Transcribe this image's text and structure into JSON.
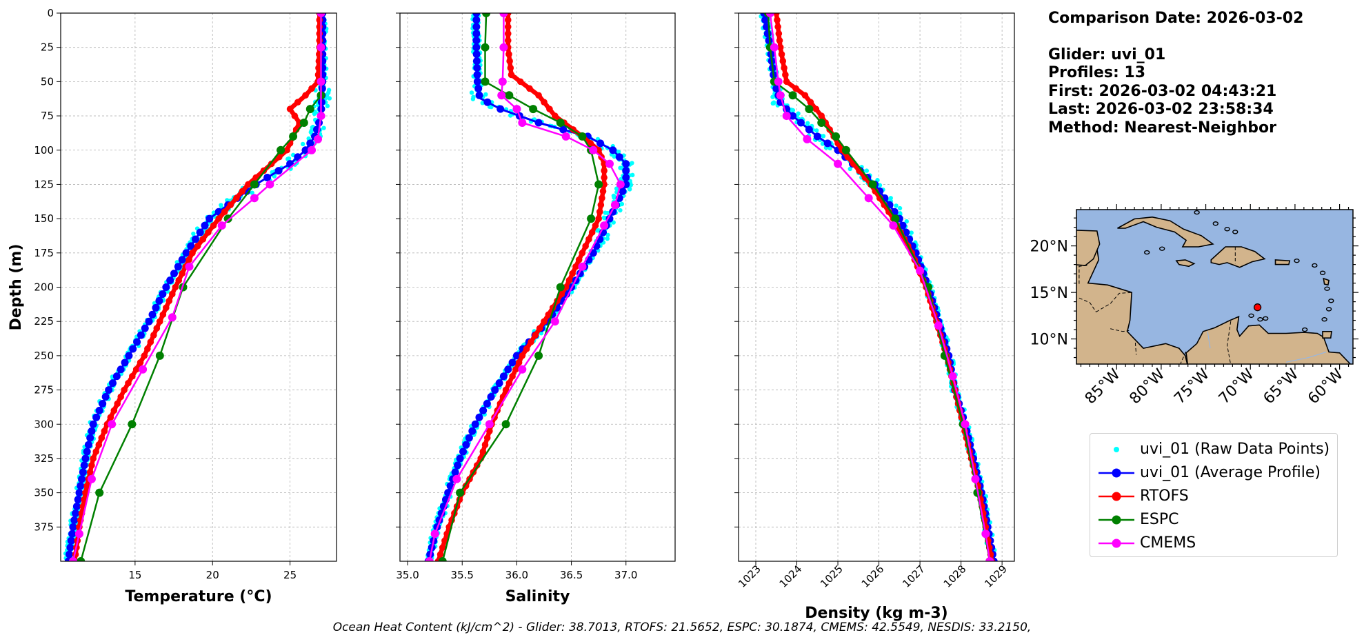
{
  "info": {
    "comparison_date": "Comparison Date: 2026-03-02",
    "glider": "Glider: uvi_01",
    "profiles": "Profiles: 13",
    "first": "First: 2026-03-02 04:43:21",
    "last": "Last: 2026-03-02 23:58:34",
    "method": "Method: Nearest-Neighbor"
  },
  "footer": "Ocean Heat Content (kJ/cm^2) - Glider: 38.7013,  RTOFS: 21.5652,  ESPC: 30.1874,  CMEMS: 42.5549,  NESDIS: 33.2150,",
  "colors": {
    "raw": "#00ffff",
    "glider": "#0000ff",
    "rtofs": "#ff0000",
    "espc": "#008000",
    "cmems": "#ff00ff",
    "ocean": "#97b6e1",
    "land": "#d2b48c"
  },
  "legend": [
    {
      "label": "uvi_01 (Raw Data Points)",
      "key": "raw",
      "style": "dots"
    },
    {
      "label": "uvi_01 (Average Profile)",
      "key": "glider",
      "style": "line-marker"
    },
    {
      "label": "RTOFS",
      "key": "rtofs",
      "style": "line-marker"
    },
    {
      "label": "ESPC",
      "key": "espc",
      "style": "line-marker"
    },
    {
      "label": "CMEMS",
      "key": "cmems",
      "style": "line-marker"
    }
  ],
  "map": {
    "lon_ticks": [
      -85,
      -80,
      -75,
      -70,
      -65,
      -60
    ],
    "lon_labels": [
      "85°W",
      "80°W",
      "75°W",
      "70°W",
      "65°W",
      "60°W"
    ],
    "lat_ticks": [
      20,
      15,
      10
    ],
    "lat_labels": [
      "20°N",
      "15°N",
      "10°N"
    ],
    "lon_range": [
      -89.5,
      -58.5
    ],
    "lat_range": [
      7.3,
      23.9
    ],
    "glider_position": {
      "lon": -69.2,
      "lat": 13.4
    }
  },
  "chart_data": [
    {
      "type": "line",
      "xlabel": "Temperature (°C)",
      "ylabel": "Depth (m)",
      "xlim": [
        10.2,
        28.0
      ],
      "ylim": [
        400,
        0
      ],
      "x_ticks": [
        15,
        20,
        25
      ],
      "y_ticks": [
        0,
        25,
        50,
        75,
        100,
        125,
        150,
        175,
        200,
        225,
        250,
        275,
        300,
        325,
        350,
        375
      ],
      "grid": true,
      "series": [
        {
          "name": "uvi_01 (Average Profile)",
          "key": "glider",
          "depth": [
            0,
            25,
            50,
            75,
            90,
            100,
            110,
            125,
            150,
            175,
            200,
            225,
            250,
            275,
            300,
            325,
            350,
            375,
            400
          ],
          "values": [
            27.1,
            27.1,
            27.1,
            27.0,
            26.6,
            26.0,
            25.0,
            22.8,
            19.8,
            18.3,
            17.0,
            15.9,
            14.6,
            13.3,
            12.3,
            11.8,
            11.4,
            11.0,
            10.7
          ]
        },
        {
          "name": "RTOFS",
          "key": "rtofs",
          "depth": [
            0,
            25,
            50,
            60,
            70,
            80,
            90,
            100,
            125,
            150,
            175,
            200,
            225,
            250,
            275,
            300,
            325,
            350,
            375,
            400
          ],
          "values": [
            26.9,
            26.9,
            26.8,
            26.0,
            25.0,
            25.6,
            25.2,
            24.8,
            22.3,
            20.4,
            18.7,
            17.6,
            16.6,
            15.6,
            14.3,
            13.2,
            12.3,
            11.8,
            11.4,
            11.1
          ]
        },
        {
          "name": "ESPC",
          "key": "espc",
          "depth": [
            0,
            25,
            50,
            60,
            70,
            80,
            90,
            100,
            125,
            150,
            200,
            250,
            300,
            350,
            400
          ],
          "values": [
            27.0,
            27.0,
            27.0,
            27.0,
            26.3,
            25.9,
            25.2,
            24.4,
            22.7,
            21.0,
            18.1,
            16.6,
            14.8,
            12.7,
            11.5
          ]
        },
        {
          "name": "CMEMS",
          "key": "cmems",
          "depth": [
            0,
            25,
            50,
            75,
            92,
            100,
            125,
            135,
            155,
            185,
            222,
            260,
            300,
            340,
            380,
            400
          ],
          "values": [
            27.0,
            27.0,
            27.0,
            27.0,
            26.8,
            26.4,
            23.7,
            22.7,
            20.6,
            18.5,
            17.4,
            15.5,
            13.5,
            12.2,
            11.4,
            11.0
          ]
        }
      ]
    },
    {
      "type": "line",
      "xlabel": "Salinity",
      "ylabel": "",
      "xlim": [
        34.93,
        37.45
      ],
      "ylim": [
        400,
        0
      ],
      "x_ticks": [
        35.0,
        35.5,
        36.0,
        36.5,
        37.0
      ],
      "x_tick_labels": [
        "35.0",
        "35.5",
        "36.0",
        "36.5",
        "37.0"
      ],
      "y_ticks": [
        0,
        25,
        50,
        75,
        100,
        125,
        150,
        175,
        200,
        225,
        250,
        275,
        300,
        325,
        350,
        375
      ],
      "grid": true,
      "series": [
        {
          "name": "uvi_01 (Average Profile)",
          "key": "glider",
          "depth": [
            0,
            25,
            50,
            62,
            70,
            80,
            90,
            100,
            110,
            125,
            150,
            175,
            200,
            225,
            250,
            275,
            300,
            325,
            350,
            375,
            400
          ],
          "values": [
            35.63,
            35.63,
            35.64,
            35.66,
            35.85,
            36.2,
            36.65,
            36.88,
            37.0,
            37.0,
            36.85,
            36.7,
            36.5,
            36.28,
            36.0,
            35.8,
            35.62,
            35.48,
            35.37,
            35.27,
            35.19
          ]
        },
        {
          "name": "RTOFS",
          "key": "rtofs",
          "depth": [
            0,
            25,
            45,
            60,
            75,
            90,
            100,
            110,
            125,
            150,
            175,
            200,
            225,
            250,
            275,
            300,
            325,
            350,
            375,
            400
          ],
          "values": [
            35.92,
            35.92,
            35.95,
            36.2,
            36.35,
            36.6,
            36.75,
            36.8,
            36.8,
            36.75,
            36.6,
            36.45,
            36.25,
            36.05,
            35.9,
            35.77,
            35.67,
            35.5,
            35.38,
            35.28
          ]
        },
        {
          "name": "ESPC",
          "key": "espc",
          "depth": [
            0,
            25,
            50,
            60,
            70,
            80,
            90,
            100,
            125,
            150,
            200,
            250,
            300,
            350,
            400
          ],
          "values": [
            35.72,
            35.71,
            35.71,
            35.93,
            36.15,
            36.4,
            36.6,
            36.68,
            36.75,
            36.68,
            36.4,
            36.2,
            35.9,
            35.48,
            35.32
          ]
        },
        {
          "name": "CMEMS",
          "key": "cmems",
          "depth": [
            0,
            25,
            50,
            60,
            70,
            80,
            90,
            100,
            110,
            125,
            140,
            155,
            185,
            225,
            260,
            300,
            340,
            380,
            400
          ],
          "values": [
            35.88,
            35.88,
            35.87,
            35.86,
            36.0,
            36.05,
            36.45,
            36.7,
            36.85,
            36.95,
            36.9,
            36.8,
            36.6,
            36.35,
            36.05,
            35.75,
            35.45,
            35.25,
            35.2
          ]
        }
      ]
    },
    {
      "type": "line",
      "xlabel": "Density (kg m-3)",
      "ylabel": "",
      "xlim": [
        1022.58,
        1029.3
      ],
      "ylim": [
        400,
        0
      ],
      "x_ticks": [
        1023,
        1024,
        1025,
        1026,
        1027,
        1028,
        1029
      ],
      "x_tick_labels": [
        "1023",
        "1024",
        "1025",
        "1026",
        "1027",
        "1028",
        "1029"
      ],
      "y_ticks": [
        0,
        25,
        50,
        75,
        100,
        125,
        150,
        175,
        200,
        225,
        250,
        275,
        300,
        325,
        350,
        375
      ],
      "grid": true,
      "series": [
        {
          "name": "uvi_01 (Average Profile)",
          "key": "glider",
          "depth": [
            0,
            25,
            50,
            65,
            75,
            90,
            100,
            125,
            150,
            175,
            200,
            225,
            250,
            275,
            300,
            325,
            350,
            375,
            400
          ],
          "values": [
            1023.2,
            1023.35,
            1023.45,
            1023.6,
            1023.9,
            1024.5,
            1025.0,
            1025.9,
            1026.5,
            1026.9,
            1027.2,
            1027.45,
            1027.7,
            1027.85,
            1028.1,
            1028.3,
            1028.5,
            1028.65,
            1028.8
          ]
        },
        {
          "name": "RTOFS",
          "key": "rtofs",
          "depth": [
            0,
            25,
            50,
            60,
            75,
            90,
            100,
            125,
            150,
            175,
            200,
            225,
            250,
            275,
            300,
            325,
            350,
            375,
            400
          ],
          "values": [
            1023.5,
            1023.6,
            1023.75,
            1024.2,
            1024.6,
            1024.9,
            1025.1,
            1025.8,
            1026.35,
            1026.8,
            1027.15,
            1027.4,
            1027.65,
            1027.85,
            1028.05,
            1028.25,
            1028.45,
            1028.6,
            1028.75
          ]
        },
        {
          "name": "ESPC",
          "key": "espc",
          "depth": [
            0,
            25,
            50,
            60,
            70,
            80,
            90,
            100,
            125,
            150,
            200,
            250,
            300,
            350,
            400
          ],
          "values": [
            1023.3,
            1023.35,
            1023.45,
            1023.9,
            1024.3,
            1024.6,
            1024.95,
            1025.2,
            1025.85,
            1026.4,
            1027.2,
            1027.6,
            1028.05,
            1028.4,
            1028.7
          ]
        },
        {
          "name": "CMEMS",
          "key": "cmems",
          "depth": [
            0,
            25,
            50,
            60,
            75,
            92,
            110,
            135,
            155,
            188,
            228,
            265,
            300,
            340,
            380,
            400
          ],
          "values": [
            1023.35,
            1023.45,
            1023.55,
            1023.6,
            1023.75,
            1024.25,
            1025.0,
            1025.75,
            1026.35,
            1027.0,
            1027.45,
            1027.8,
            1028.1,
            1028.35,
            1028.6,
            1028.7
          ]
        }
      ]
    }
  ]
}
